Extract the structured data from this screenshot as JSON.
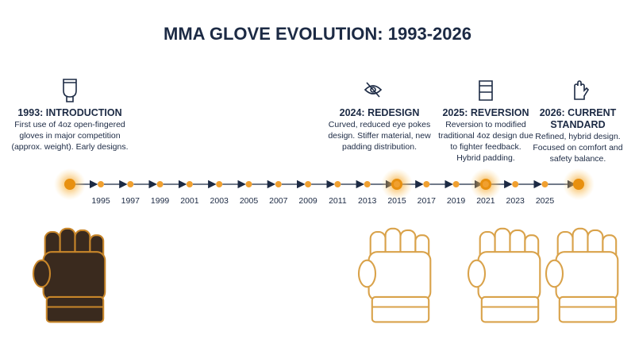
{
  "title": "MMA GLOVE EVOLUTION: 1993-2026",
  "events": [
    {
      "heading": [
        "1993: INTRODUCTION"
      ],
      "description": [
        "First use of 4oz open-fingered",
        "gloves in major competition",
        "(approx. weight). Early designs."
      ]
    },
    {
      "heading": [
        "2024: REDESIGN"
      ],
      "description": [
        "Curved, reduced eye pokes",
        "design. Stiffer material, new",
        "padding distribution."
      ]
    },
    {
      "heading": [
        "2025: REVERSION"
      ],
      "description": [
        "Reversion to modified",
        "traditional 4oz design due",
        "to fighter feedback.",
        "Hybrid padding."
      ]
    },
    {
      "heading": [
        "2026: CURRENT",
        "STANDARD"
      ],
      "description": [
        "Refined, hybrid design.",
        "Focused on comfort and",
        "safety balance."
      ]
    }
  ],
  "years": [
    "1995",
    "1997",
    "1999",
    "2001",
    "2003",
    "2005",
    "2007",
    "2009",
    "2011",
    "2013",
    "2015",
    "2017",
    "2019",
    "2021",
    "2023",
    "2025"
  ]
}
